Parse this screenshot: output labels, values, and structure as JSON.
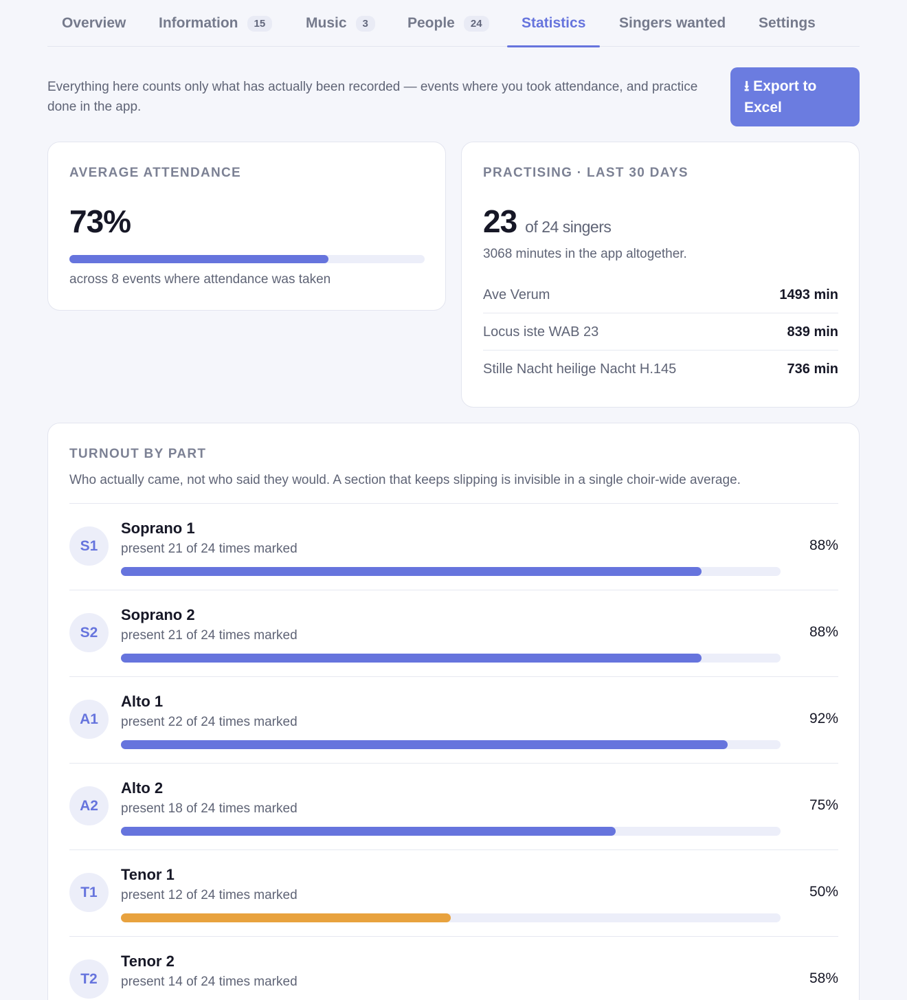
{
  "tabs": [
    {
      "label": "Overview",
      "count": null
    },
    {
      "label": "Information",
      "count": "15"
    },
    {
      "label": "Music",
      "count": "3"
    },
    {
      "label": "People",
      "count": "24"
    },
    {
      "label": "Statistics",
      "count": null,
      "active": true
    },
    {
      "label": "Singers wanted",
      "count": null
    },
    {
      "label": "Settings",
      "count": null
    }
  ],
  "intro": {
    "text": "Everything here counts only what has actually been recorded — events where you took attendance, and practice done in the app.",
    "export_label": "⭳ Export to Excel"
  },
  "attendance": {
    "label": "AVERAGE ATTENDANCE",
    "value": "73%",
    "fraction": 0.73,
    "caption": "across 8 events where attendance was taken"
  },
  "practice": {
    "label": "PRACTISING · LAST 30 DAYS",
    "count": "23",
    "of_text": "of 24 singers",
    "minutes_text": "3068 minutes in the app altogether.",
    "songs": [
      {
        "name": "Ave Verum",
        "minutes": "1493 min"
      },
      {
        "name": "Locus iste WAB 23",
        "minutes": "839 min"
      },
      {
        "name": "Stille Nacht heilige Nacht H.145",
        "minutes": "736 min"
      }
    ]
  },
  "turnout": {
    "label": "TURNOUT BY PART",
    "description": "Who actually came, not who said they would. A section that keeps slipping is invisible in a single choir-wide average.",
    "parts": [
      {
        "code": "S1",
        "name": "Soprano 1",
        "sub": "present 21 of 24 times marked",
        "pct": "88%",
        "fraction": 0.88,
        "warn": false
      },
      {
        "code": "S2",
        "name": "Soprano 2",
        "sub": "present 21 of 24 times marked",
        "pct": "88%",
        "fraction": 0.88,
        "warn": false
      },
      {
        "code": "A1",
        "name": "Alto 1",
        "sub": "present 22 of 24 times marked",
        "pct": "92%",
        "fraction": 0.92,
        "warn": false
      },
      {
        "code": "A2",
        "name": "Alto 2",
        "sub": "present 18 of 24 times marked",
        "pct": "75%",
        "fraction": 0.75,
        "warn": false
      },
      {
        "code": "T1",
        "name": "Tenor 1",
        "sub": "present 12 of 24 times marked",
        "pct": "50%",
        "fraction": 0.5,
        "warn": true
      },
      {
        "code": "T2",
        "name": "Tenor 2",
        "sub": "present 14 of 24 times marked",
        "pct": "58%",
        "fraction": 0.58,
        "warn": false
      }
    ]
  },
  "colors": {
    "accent": "#6674dd",
    "warning": "#e8a23e",
    "track": "#eceef9"
  }
}
